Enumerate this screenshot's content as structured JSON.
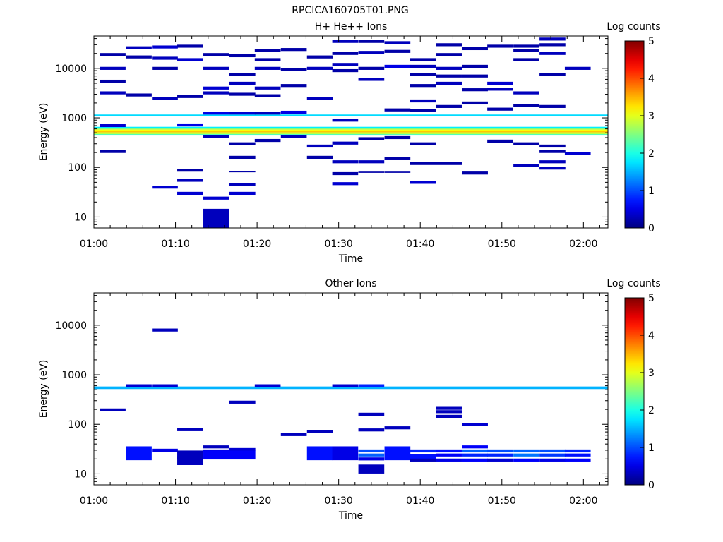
{
  "figure_title": "RPCICA160705T01.PNG",
  "colors": {
    "axis": "#000000",
    "background": "#ffffff"
  },
  "chart_data": [
    {
      "type": "heatmap",
      "title": "H+ He++ Ions",
      "xlabel": "Time",
      "ylabel": "Energy (eV)",
      "x_ticks": [
        "01:00",
        "01:10",
        "01:20",
        "01:30",
        "01:40",
        "01:50",
        "02:00"
      ],
      "x_range_minutes": [
        60,
        123
      ],
      "y_scale": "log",
      "y_ticks": [
        10,
        100,
        1000,
        10000
      ],
      "y_range": [
        6,
        45000
      ],
      "colorbar": {
        "label": "Log counts",
        "ticks": [
          0,
          1,
          2,
          3,
          4,
          5
        ],
        "range": [
          0,
          5
        ]
      },
      "bands": [
        {
          "e1": 440,
          "e2": 470,
          "log_counts": 2.2
        },
        {
          "e1": 470,
          "e2": 510,
          "log_counts": 2.8
        },
        {
          "e1": 510,
          "e2": 545,
          "log_counts": 3.4
        },
        {
          "e1": 545,
          "e2": 585,
          "log_counts": 3.1
        },
        {
          "e1": 585,
          "e2": 625,
          "log_counts": 2.5
        },
        {
          "e1": 625,
          "e2": 660,
          "log_counts": 1.8
        },
        {
          "e1": 1100,
          "e2": 1170,
          "log_counts": 1.7
        }
      ],
      "cells": [
        {
          "t": 62.3,
          "e": 19000,
          "v": 0.2
        },
        {
          "t": 62.3,
          "e": 10000,
          "v": 0.3
        },
        {
          "t": 62.3,
          "e": 5500,
          "v": 0.2
        },
        {
          "t": 62.3,
          "e": 3200,
          "v": 0.3
        },
        {
          "t": 62.3,
          "e": 700,
          "v": 0.4
        },
        {
          "t": 62.3,
          "e": 210,
          "v": 0.2
        },
        {
          "t": 65.5,
          "e": 26000,
          "v": 0.3
        },
        {
          "t": 65.5,
          "e": 17000,
          "v": 0.2
        },
        {
          "t": 65.5,
          "e": 2900,
          "v": 0.2
        },
        {
          "t": 68.7,
          "e": 27000,
          "v": 0.4
        },
        {
          "t": 68.7,
          "e": 16000,
          "v": 0.3
        },
        {
          "t": 68.7,
          "e": 10000,
          "v": 0.2
        },
        {
          "t": 68.7,
          "e": 2500,
          "v": 0.3
        },
        {
          "t": 68.7,
          "e": 40,
          "v": 0.4
        },
        {
          "t": 71.8,
          "e": 28000,
          "v": 0.2
        },
        {
          "t": 71.8,
          "e": 15000,
          "v": 0.4
        },
        {
          "t": 71.8,
          "e": 2700,
          "v": 0.2
        },
        {
          "t": 71.8,
          "e": 720,
          "v": 0.5
        },
        {
          "t": 71.8,
          "e": 88,
          "v": 0.2
        },
        {
          "t": 71.8,
          "e": 55,
          "v": 0.3
        },
        {
          "t": 71.8,
          "e": 30,
          "v": 0.4
        },
        {
          "t": 75.0,
          "e": 19000,
          "v": 0.2
        },
        {
          "t": 75.0,
          "e": 10000,
          "v": 0.3
        },
        {
          "t": 75.0,
          "e": 4000,
          "v": 0.4
        },
        {
          "t": 75.0,
          "e": 3200,
          "v": 0.3
        },
        {
          "t": 75.0,
          "e": 1250,
          "v": 0.5
        },
        {
          "t": 75.0,
          "e": 420,
          "v": 0.3
        },
        {
          "t": 75.0,
          "e": 24,
          "v": 0.4
        },
        {
          "t": 75.0,
          "e": 8.8,
          "v": 0.3,
          "h": 0.22
        },
        {
          "t": 78.2,
          "e": 18000,
          "v": 0.2
        },
        {
          "t": 78.2,
          "e": 7500,
          "v": 0.2
        },
        {
          "t": 78.2,
          "e": 5000,
          "v": 0.3
        },
        {
          "t": 78.2,
          "e": 3000,
          "v": 0.2
        },
        {
          "t": 78.2,
          "e": 1250,
          "v": 0.4
        },
        {
          "t": 78.2,
          "e": 300,
          "v": 0.2
        },
        {
          "t": 78.2,
          "e": 160,
          "v": 0.2
        },
        {
          "t": 78.2,
          "e": 82,
          "v": 0.2,
          "h": 0.012
        },
        {
          "t": 78.2,
          "e": 45,
          "v": 0.3
        },
        {
          "t": 78.2,
          "e": 30,
          "v": 0.4
        },
        {
          "t": 81.3,
          "e": 23000,
          "v": 0.2
        },
        {
          "t": 81.3,
          "e": 15000,
          "v": 0.2
        },
        {
          "t": 81.3,
          "e": 10000,
          "v": 0.3
        },
        {
          "t": 81.3,
          "e": 4000,
          "v": 0.3
        },
        {
          "t": 81.3,
          "e": 2800,
          "v": 0.2
        },
        {
          "t": 81.3,
          "e": 1250,
          "v": 0.3
        },
        {
          "t": 81.3,
          "e": 350,
          "v": 0.2
        },
        {
          "t": 84.5,
          "e": 24000,
          "v": 0.2
        },
        {
          "t": 84.5,
          "e": 9500,
          "v": 0.2
        },
        {
          "t": 84.5,
          "e": 4500,
          "v": 0.2
        },
        {
          "t": 84.5,
          "e": 1300,
          "v": 0.5
        },
        {
          "t": 84.5,
          "e": 420,
          "v": 0.3
        },
        {
          "t": 87.7,
          "e": 17000,
          "v": 0.2
        },
        {
          "t": 87.7,
          "e": 10000,
          "v": 0.3
        },
        {
          "t": 87.7,
          "e": 2500,
          "v": 0.3
        },
        {
          "t": 87.7,
          "e": 270,
          "v": 0.3
        },
        {
          "t": 87.7,
          "e": 160,
          "v": 0.2
        },
        {
          "t": 90.8,
          "e": 35000,
          "v": 0.3
        },
        {
          "t": 90.8,
          "e": 20000,
          "v": 0.2
        },
        {
          "t": 90.8,
          "e": 12000,
          "v": 0.3
        },
        {
          "t": 90.8,
          "e": 9000,
          "v": 0.2
        },
        {
          "t": 90.8,
          "e": 900,
          "v": 0.3
        },
        {
          "t": 90.8,
          "e": 310,
          "v": 0.3
        },
        {
          "t": 90.8,
          "e": 130,
          "v": 0.3
        },
        {
          "t": 90.8,
          "e": 75,
          "v": 0.2
        },
        {
          "t": 90.8,
          "e": 47,
          "v": 0.4
        },
        {
          "t": 94.0,
          "e": 35000,
          "v": 0.2
        },
        {
          "t": 94.0,
          "e": 21000,
          "v": 0.3
        },
        {
          "t": 94.0,
          "e": 10000,
          "v": 0.2
        },
        {
          "t": 94.0,
          "e": 6000,
          "v": 0.3
        },
        {
          "t": 94.0,
          "e": 380,
          "v": 0.2
        },
        {
          "t": 94.0,
          "e": 130,
          "v": 0.3
        },
        {
          "t": 94.0,
          "e": 80,
          "v": 0.2,
          "h": 0.012
        },
        {
          "t": 97.2,
          "e": 33000,
          "v": 0.3
        },
        {
          "t": 97.2,
          "e": 22000,
          "v": 0.2
        },
        {
          "t": 97.2,
          "e": 11000,
          "v": 0.5
        },
        {
          "t": 97.2,
          "e": 1450,
          "v": 0.2
        },
        {
          "t": 97.2,
          "e": 400,
          "v": 0.2
        },
        {
          "t": 97.2,
          "e": 150,
          "v": 0.2
        },
        {
          "t": 97.2,
          "e": 80,
          "v": 0.2,
          "h": 0.012
        },
        {
          "t": 100.3,
          "e": 15000,
          "v": 0.2
        },
        {
          "t": 100.3,
          "e": 11000,
          "v": 0.3
        },
        {
          "t": 100.3,
          "e": 7500,
          "v": 0.2
        },
        {
          "t": 100.3,
          "e": 4500,
          "v": 0.2
        },
        {
          "t": 100.3,
          "e": 2200,
          "v": 0.3
        },
        {
          "t": 100.3,
          "e": 1400,
          "v": 0.2
        },
        {
          "t": 100.3,
          "e": 300,
          "v": 0.2
        },
        {
          "t": 100.3,
          "e": 120,
          "v": 0.2
        },
        {
          "t": 100.3,
          "e": 50,
          "v": 0.4
        },
        {
          "t": 103.5,
          "e": 30000,
          "v": 0.2
        },
        {
          "t": 103.5,
          "e": 19000,
          "v": 0.2
        },
        {
          "t": 103.5,
          "e": 10000,
          "v": 0.3
        },
        {
          "t": 103.5,
          "e": 7000,
          "v": 0.2
        },
        {
          "t": 103.5,
          "e": 5000,
          "v": 0.3
        },
        {
          "t": 103.5,
          "e": 1700,
          "v": 0.2
        },
        {
          "t": 103.5,
          "e": 120,
          "v": 0.2
        },
        {
          "t": 106.7,
          "e": 25000,
          "v": 0.2
        },
        {
          "t": 106.7,
          "e": 11000,
          "v": 0.2
        },
        {
          "t": 106.7,
          "e": 7000,
          "v": 0.2
        },
        {
          "t": 106.7,
          "e": 3700,
          "v": 0.2
        },
        {
          "t": 106.7,
          "e": 2000,
          "v": 0.2
        },
        {
          "t": 106.7,
          "e": 77,
          "v": 0.2
        },
        {
          "t": 109.8,
          "e": 28000,
          "v": 0.2
        },
        {
          "t": 109.8,
          "e": 5000,
          "v": 0.4
        },
        {
          "t": 109.8,
          "e": 3800,
          "v": 0.3
        },
        {
          "t": 109.8,
          "e": 1500,
          "v": 0.2
        },
        {
          "t": 109.8,
          "e": 340,
          "v": 0.2
        },
        {
          "t": 113.0,
          "e": 28000,
          "v": 0.2
        },
        {
          "t": 113.0,
          "e": 23000,
          "v": 0.2
        },
        {
          "t": 113.0,
          "e": 15000,
          "v": 0.2
        },
        {
          "t": 113.0,
          "e": 3200,
          "v": 0.3
        },
        {
          "t": 113.0,
          "e": 1800,
          "v": 0.2
        },
        {
          "t": 113.0,
          "e": 300,
          "v": 0.2
        },
        {
          "t": 113.0,
          "e": 110,
          "v": 0.3
        },
        {
          "t": 116.2,
          "e": 39000,
          "v": 0.3
        },
        {
          "t": 116.2,
          "e": 30000,
          "v": 0.2
        },
        {
          "t": 116.2,
          "e": 20000,
          "v": 0.3
        },
        {
          "t": 116.2,
          "e": 7500,
          "v": 0.2
        },
        {
          "t": 116.2,
          "e": 1700,
          "v": 0.2
        },
        {
          "t": 116.2,
          "e": 270,
          "v": 0.2
        },
        {
          "t": 116.2,
          "e": 210,
          "v": 0.2
        },
        {
          "t": 116.2,
          "e": 130,
          "v": 0.3
        },
        {
          "t": 116.2,
          "e": 97,
          "v": 0.3
        },
        {
          "t": 119.3,
          "e": 10000,
          "v": 0.3
        },
        {
          "t": 119.3,
          "e": 190,
          "v": 0.4
        }
      ]
    },
    {
      "type": "heatmap",
      "title": "Other Ions",
      "xlabel": "Time",
      "ylabel": "Energy (eV)",
      "x_ticks": [
        "01:00",
        "01:10",
        "01:20",
        "01:30",
        "01:40",
        "01:50",
        "02:00"
      ],
      "x_range_minutes": [
        60,
        123
      ],
      "y_scale": "log",
      "y_ticks": [
        10,
        100,
        1000,
        10000
      ],
      "y_range": [
        6,
        45000
      ],
      "colorbar": {
        "label": "Log counts",
        "ticks": [
          0,
          1,
          2,
          3,
          4,
          5
        ],
        "range": [
          0,
          5
        ]
      },
      "bands": [
        {
          "e1": 515,
          "e2": 580,
          "log_counts": 1.5
        }
      ],
      "cells": [
        {
          "t": 62.3,
          "e": 195,
          "v": 0.3
        },
        {
          "t": 65.5,
          "e": 600,
          "v": 0.4
        },
        {
          "t": 65.5,
          "e": 26,
          "v": 0.7,
          "h": 0.14
        },
        {
          "t": 68.7,
          "e": 8000,
          "v": 0.3
        },
        {
          "t": 68.7,
          "e": 600,
          "v": 0.4
        },
        {
          "t": 68.7,
          "e": 30,
          "v": 0.5
        },
        {
          "t": 71.8,
          "e": 78,
          "v": 0.3
        },
        {
          "t": 71.8,
          "e": 24,
          "v": 0.3,
          "h": 0.09
        },
        {
          "t": 71.8,
          "e": 18.5,
          "v": 0.3,
          "h": 0.09
        },
        {
          "t": 75.0,
          "e": 35,
          "v": 0.3
        },
        {
          "t": 75.0,
          "e": 29,
          "v": 0.5
        },
        {
          "t": 75.0,
          "e": 24,
          "v": 0.6,
          "h": 0.09
        },
        {
          "t": 78.2,
          "e": 280,
          "v": 0.3
        },
        {
          "t": 78.2,
          "e": 31,
          "v": 0.4
        },
        {
          "t": 78.2,
          "e": 24,
          "v": 0.6,
          "h": 0.09
        },
        {
          "t": 81.3,
          "e": 600,
          "v": 0.4
        },
        {
          "t": 84.5,
          "e": 62,
          "v": 0.3
        },
        {
          "t": 87.7,
          "e": 72,
          "v": 0.3
        },
        {
          "t": 87.7,
          "e": 26,
          "v": 0.7,
          "h": 0.14
        },
        {
          "t": 90.8,
          "e": 600,
          "v": 0.4
        },
        {
          "t": 90.8,
          "e": 26,
          "v": 0.5,
          "h": 0.14
        },
        {
          "t": 94.0,
          "e": 600,
          "v": 0.8
        },
        {
          "t": 94.0,
          "e": 160,
          "v": 0.3
        },
        {
          "t": 94.0,
          "e": 77,
          "v": 0.3
        },
        {
          "t": 94.0,
          "e": 29,
          "v": 1.0
        },
        {
          "t": 94.0,
          "e": 24,
          "v": 1.1
        },
        {
          "t": 94.0,
          "e": 20,
          "v": 0.5
        },
        {
          "t": 94.0,
          "e": 12.5,
          "v": 0.3,
          "h": 0.09
        },
        {
          "t": 97.2,
          "e": 85,
          "v": 0.3
        },
        {
          "t": 97.2,
          "e": 26,
          "v": 0.7,
          "h": 0.14
        },
        {
          "t": 100.3,
          "e": 29,
          "v": 0.8
        },
        {
          "t": 100.3,
          "e": 22.5,
          "v": 0.7,
          "h": 0.05
        },
        {
          "t": 100.3,
          "e": 19,
          "v": 0.3
        },
        {
          "t": 103.5,
          "e": 210,
          "v": 0.3
        },
        {
          "t": 103.5,
          "e": 180,
          "v": 0.3
        },
        {
          "t": 103.5,
          "e": 145,
          "v": 0.3
        },
        {
          "t": 103.5,
          "e": 29,
          "v": 0.7
        },
        {
          "t": 103.5,
          "e": 24,
          "v": 0.6
        },
        {
          "t": 103.5,
          "e": 19,
          "v": 0.5
        },
        {
          "t": 106.7,
          "e": 100,
          "v": 0.4
        },
        {
          "t": 106.7,
          "e": 35,
          "v": 0.6
        },
        {
          "t": 106.7,
          "e": 29,
          "v": 1.1
        },
        {
          "t": 106.7,
          "e": 24,
          "v": 0.8
        },
        {
          "t": 106.7,
          "e": 19,
          "v": 0.6
        },
        {
          "t": 109.8,
          "e": 29,
          "v": 1.0
        },
        {
          "t": 109.8,
          "e": 24,
          "v": 0.8
        },
        {
          "t": 109.8,
          "e": 19,
          "v": 0.4
        },
        {
          "t": 113.0,
          "e": 29,
          "v": 1.1
        },
        {
          "t": 113.0,
          "e": 24,
          "v": 1.2
        },
        {
          "t": 113.0,
          "e": 19,
          "v": 0.6
        },
        {
          "t": 116.2,
          "e": 29,
          "v": 1.0
        },
        {
          "t": 116.2,
          "e": 24,
          "v": 0.9
        },
        {
          "t": 116.2,
          "e": 19,
          "v": 0.5
        },
        {
          "t": 119.3,
          "e": 29,
          "v": 0.8
        },
        {
          "t": 119.3,
          "e": 24,
          "v": 0.7
        },
        {
          "t": 119.3,
          "e": 19,
          "v": 0.6
        }
      ]
    }
  ]
}
